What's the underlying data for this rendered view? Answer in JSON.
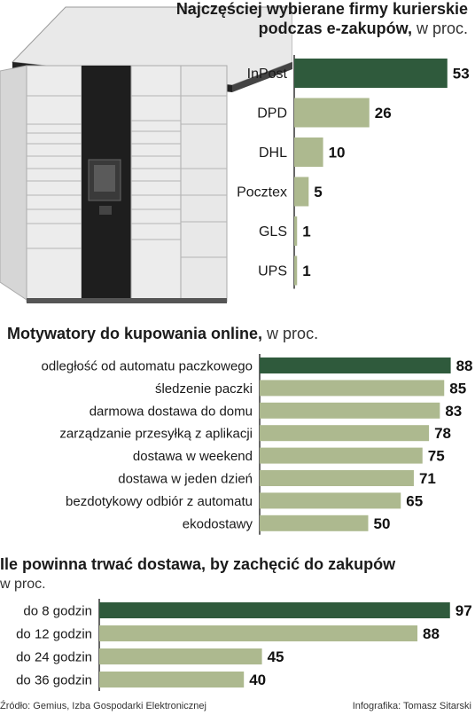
{
  "colors": {
    "highlight": "#2f5a3c",
    "bar": "#adb98f",
    "axis": "#333333"
  },
  "illustration": {
    "name": "parcel-locker-illustration"
  },
  "chart_data": [
    {
      "type": "bar",
      "title": "Najczęściej wybierane firmy kurierskie",
      "title_line2_bold": "podczas e-zakupów,",
      "title_suffix": "w proc.",
      "categories": [
        "InPost",
        "DPD",
        "DHL",
        "Pocztex",
        "GLS",
        "UPS"
      ],
      "values": [
        53,
        26,
        10,
        5,
        1,
        1
      ],
      "highlight_index": 0
    },
    {
      "type": "bar",
      "title": "Motywatory do kupowania online,",
      "title_suffix": "w proc.",
      "categories": [
        "odległość od automatu paczkowego",
        "śledzenie paczki",
        "darmowa dostawa do domu",
        "zarządzanie przesyłką z aplikacji",
        "dostawa w weekend",
        "dostawa w jeden dzień",
        "bezdotykowy odbiór z automatu",
        "ekodostawy"
      ],
      "values": [
        88,
        85,
        83,
        78,
        75,
        71,
        65,
        50
      ],
      "highlight_index": 0
    },
    {
      "type": "bar",
      "title": "Ile powinna trwać dostawa, by zachęcić do zakupów",
      "title_suffix": "w proc.",
      "categories": [
        "do 8 godzin",
        "do 12 godzin",
        "do 24 godzin",
        "do 36 godzin"
      ],
      "values": [
        97,
        88,
        45,
        40
      ],
      "highlight_index": 0
    }
  ],
  "footer": {
    "source": "Źródło: Gemius, Izba Gospodarki Elektronicznej",
    "credit": "Infografika: Tomasz Sitarski"
  }
}
